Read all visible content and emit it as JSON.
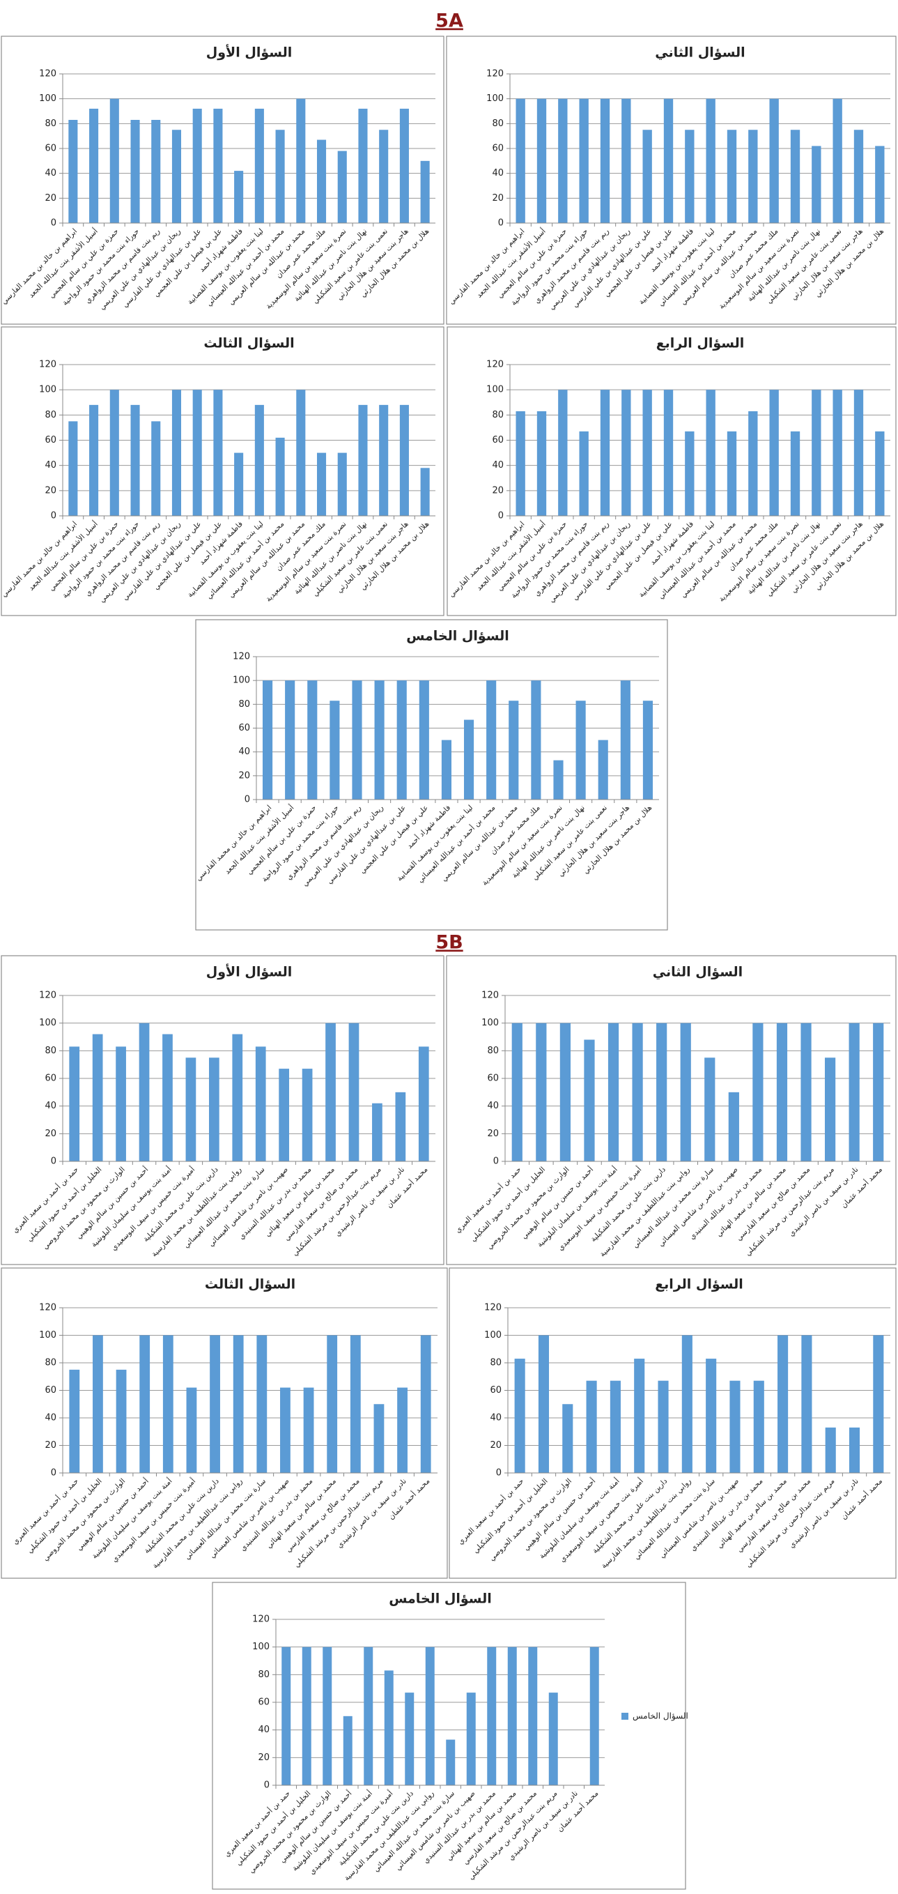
{
  "headings": [
    "5A",
    "5B"
  ],
  "chart_data": [
    {
      "type": "bar",
      "title": "السؤال الأول",
      "color": "#5b9bd5",
      "ylim": [
        0,
        120
      ],
      "yticks": [
        0,
        20,
        40,
        60,
        80,
        100,
        120
      ],
      "grid": true,
      "categories": [
        "ابراهيم بن خالد بن محمد الفارسي",
        "أسيل الأشقر بنت عبدالله الجعد",
        "حمزة بن علي بن سالم العجمي",
        "حوراء بنت محمد بن حمود الرواحية",
        "ريم بنت قاسم بن محمد الزواهري",
        "ريحان بن عبدالهادي بن علي العريمي",
        "علي بن عبدالهادي بن علي الفارسي",
        "علي بن فيصل بن علي العجمي",
        "فاطمة شهزاد أحمد",
        "لينا بنت يعقوب بن يوسف القصابية",
        "محمد بن أحمد بن عبدالله العيسائي",
        "محمد بن عبدالله بن سالم العريمي",
        "ملك محمد عمر صدان",
        "نصرة بنت سعيد بن سالم البوسعيدية",
        "نهال بنت ناصر بن عبدالله الهنائية",
        "نعمى بنت عامر بن سعيد الشكيلي",
        "هاجر بنت سعيد بن هلال الحارثي",
        "هلال بن محمد بن هلال الحارثي"
      ],
      "values": [
        83,
        92,
        100,
        83,
        83,
        75,
        92,
        92,
        42,
        92,
        75,
        100,
        67,
        58,
        92,
        75,
        92,
        50
      ]
    },
    {
      "type": "bar",
      "title": "السؤال الثاني",
      "color": "#5b9bd5",
      "ylim": [
        0,
        120
      ],
      "yticks": [
        0,
        20,
        40,
        60,
        80,
        100,
        120
      ],
      "grid": true,
      "categories": [
        "ابراهيم بن خالد بن محمد الفارسي",
        "أسيل الأشقر بنت عبدالله الجعد",
        "حمزة بن علي بن سالم العجمي",
        "حوراء بنت محمد بن حمود الرواحية",
        "ريم بنت قاسم بن محمد الزواهري",
        "ريحان بن عبدالهادي بن علي العريمي",
        "علي بن عبدالهادي بن علي الفارسي",
        "علي بن فيصل بن علي العجمي",
        "فاطمة شهزاد أحمد",
        "لينا بنت يعقوب بن يوسف القصابية",
        "محمد بن أحمد بن عبدالله العيسائي",
        "محمد بن عبدالله بن سالم العريمي",
        "ملك محمد عمر صدان",
        "نصرة بنت سعيد بن سالم البوسعيدية",
        "نهال بنت ناصر بن عبدالله الهنائية",
        "نعمى بنت عامر بن سعيد الشكيلي",
        "هاجر بنت سعيد بن هلال الحارثي",
        "هلال بن محمد بن هلال الحارثي"
      ],
      "values": [
        100,
        100,
        100,
        100,
        100,
        100,
        75,
        100,
        75,
        100,
        75,
        75,
        100,
        75,
        62,
        100,
        75,
        62
      ]
    },
    {
      "type": "bar",
      "title": "السؤال الثالث",
      "color": "#5b9bd5",
      "ylim": [
        0,
        120
      ],
      "yticks": [
        0,
        20,
        40,
        60,
        80,
        100,
        120
      ],
      "grid": true,
      "categories": [
        "ابراهيم بن خالد بن محمد الفارسي",
        "أسيل الأشقر بنت عبدالله الجعد",
        "حمزة بن علي بن سالم العجمي",
        "حوراء بنت محمد بن حمود الرواحية",
        "ريم بنت قاسم بن محمد الزواهري",
        "ريحان بن عبدالهادي بن علي العريمي",
        "علي بن عبدالهادي بن علي الفارسي",
        "علي بن فيصل بن علي العجمي",
        "فاطمة شهزاد أحمد",
        "لينا بنت يعقوب بن يوسف القصابية",
        "محمد بن أحمد بن عبدالله العيسائي",
        "محمد بن عبدالله بن سالم العريمي",
        "ملك محمد عمر صدان",
        "نصرة بنت سعيد بن سالم البوسعيدية",
        "نهال بنت ناصر بن عبدالله الهنائية",
        "نعمى بنت عامر بن سعيد الشكيلي",
        "هاجر بنت سعيد بن هلال الحارثي",
        "هلال بن محمد بن هلال الحارثي"
      ],
      "values": [
        75,
        88,
        100,
        88,
        75,
        100,
        100,
        100,
        50,
        88,
        62,
        100,
        50,
        50,
        88,
        88,
        88,
        38
      ]
    },
    {
      "type": "bar",
      "title": "السؤال الرابع",
      "color": "#5b9bd5",
      "ylim": [
        0,
        120
      ],
      "yticks": [
        0,
        20,
        40,
        60,
        80,
        100,
        120
      ],
      "grid": true,
      "categories": [
        "ابراهيم بن خالد بن محمد الفارسي",
        "أسيل الأشقر بنت عبدالله الجعد",
        "حمزة بن علي بن سالم العجمي",
        "حوراء بنت محمد بن حمود الرواحية",
        "ريم بنت قاسم بن محمد الزواهري",
        "ريحان بن عبدالهادي بن علي العريمي",
        "علي بن عبدالهادي بن علي الفارسي",
        "علي بن فيصل بن علي العجمي",
        "فاطمة شهزاد أحمد",
        "لينا بنت يعقوب بن يوسف القصابية",
        "محمد بن أحمد بن عبدالله العيسائي",
        "محمد بن عبدالله بن سالم العريمي",
        "ملك محمد عمر صدان",
        "نصرة بنت سعيد بن سالم البوسعيدية",
        "نهال بنت ناصر بن عبدالله الهنائية",
        "نعمى بنت عامر بن سعيد الشكيلي",
        "هاجر بنت سعيد بن هلال الحارثي",
        "هلال بن محمد بن هلال الحارثي"
      ],
      "values": [
        83,
        83,
        100,
        67,
        100,
        100,
        100,
        100,
        67,
        100,
        67,
        83,
        100,
        67,
        100,
        100,
        100,
        67
      ]
    },
    {
      "type": "bar",
      "title": "السؤال الخامس",
      "color": "#5b9bd5",
      "ylim": [
        0,
        120
      ],
      "yticks": [
        0,
        20,
        40,
        60,
        80,
        100,
        120
      ],
      "grid": true,
      "categories": [
        "ابراهيم بن خالد بن محمد الفارسي",
        "أسيل الأشقر بنت عبدالله الجعد",
        "حمزة بن علي بن سالم العجمي",
        "حوراء بنت محمد بن حمود الرواحية",
        "ريم بنت قاسم بن محمد الزواهري",
        "ريحان بن عبدالهادي بن علي العريمي",
        "علي بن عبدالهادي بن علي الفارسي",
        "علي بن فيصل بن علي العجمي",
        "فاطمة شهزاد أحمد",
        "لينا بنت يعقوب بن يوسف القصابية",
        "محمد بن أحمد بن عبدالله العيسائي",
        "محمد بن عبدالله بن سالم العريمي",
        "ملك محمد عمر صدان",
        "نصرة بنت سعيد بن سالم البوسعيدية",
        "نهال بنت ناصر بن عبدالله الهنائية",
        "نعمى بنت عامر بن سعيد الشكيلي",
        "هاجر بنت سعيد بن هلال الحارثي",
        "هلال بن محمد بن هلال الحارثي"
      ],
      "values": [
        100,
        100,
        100,
        83,
        100,
        100,
        100,
        100,
        50,
        67,
        100,
        83,
        100,
        33,
        83,
        50,
        100,
        83
      ]
    },
    {
      "type": "bar",
      "title": "السؤال الأول",
      "color": "#5b9bd5",
      "ylim": [
        0,
        120
      ],
      "yticks": [
        0,
        20,
        40,
        60,
        80,
        100,
        120
      ],
      "grid": true,
      "categories": [
        "حمد بن أحمد بن سعيد العبري",
        "الخليل بن أحمد بن حمود الشكيلي",
        "الوارث بن محمود بن محمد الخروصي",
        "أحمد بن حسين بن سالم الوهيبي",
        "أمنة بنت يوسف بن سليمان البلوشية",
        "أميرة بنت خميس بن سيف البوسعيدي",
        "دارين بنت علي بن محمد الشكيلية",
        "روابي بنت عبداللطيف بن محمد الفارسية",
        "سارة بنت محمد بن عبدالله العيسائي",
        "صهيب بن ناصر بن شامس العيسائي",
        "محمد بن بدر بن عبدالله السنيدي",
        "محمد بن سالم بن سعيد الهنائي",
        "محمد بن صالح بن سعيد الفارسي",
        "مريم بنت عبدالرحمن بن مرشد الشكيلي",
        "نادر بن سيف بن ناصر الرشيدي",
        "محمد أحمد عثمان"
      ],
      "values": [
        83,
        92,
        83,
        100,
        92,
        75,
        75,
        92,
        83,
        67,
        67,
        100,
        100,
        42,
        50,
        83
      ]
    },
    {
      "type": "bar",
      "title": "السؤال الثاني",
      "color": "#5b9bd5",
      "ylim": [
        0,
        120
      ],
      "yticks": [
        0,
        20,
        40,
        60,
        80,
        100,
        120
      ],
      "grid": true,
      "categories": [
        "حمد بن أحمد بن سعيد العبري",
        "الخليل بن أحمد بن حمود الشكيلي",
        "الوارث بن محمود بن محمد الخروصي",
        "أحمد بن حسين بن سالم الوهيبي",
        "أمنة بنت يوسف بن سليمان البلوشية",
        "أميرة بنت خميس بن سيف البوسعيدي",
        "دارين بنت علي بن محمد الشكيلية",
        "روابي بنت عبداللطيف بن محمد الفارسية",
        "سارة بنت محمد بن عبدالله العيسائي",
        "صهيب بن ناصر بن شامس العيسائي",
        "محمد بن بدر بن عبدالله السنيدي",
        "محمد بن سالم بن سعيد الهنائي",
        "محمد بن صالح بن سعيد الفارسي",
        "مريم بنت عبدالرحمن بن مرشد الشكيلي",
        "نادر بن سيف بن ناصر الرشيدي",
        "محمد أحمد عثمان"
      ],
      "values": [
        100,
        100,
        100,
        88,
        100,
        100,
        100,
        100,
        75,
        50,
        100,
        100,
        100,
        75,
        100,
        100
      ]
    },
    {
      "type": "bar",
      "title": "السؤال الثالث",
      "color": "#5b9bd5",
      "ylim": [
        0,
        120
      ],
      "yticks": [
        0,
        20,
        40,
        60,
        80,
        100,
        120
      ],
      "grid": true,
      "categories": [
        "حمد بن أحمد بن سعيد العبري",
        "الخليل بن أحمد بن حمود الشكيلي",
        "الوارث بن محمود بن محمد الخروصي",
        "أحمد بن حسين بن سالم الوهيبي",
        "أمنة بنت يوسف بن سليمان البلوشية",
        "أميرة بنت خميس بن سيف البوسعيدي",
        "دارين بنت علي بن محمد الشكيلية",
        "روابي بنت عبداللطيف بن محمد الفارسية",
        "سارة بنت محمد بن عبدالله العيسائي",
        "صهيب بن ناصر بن شامس العيسائي",
        "محمد بن بدر بن عبدالله السنيدي",
        "محمد بن سالم بن سعيد الهنائي",
        "محمد بن صالح بن سعيد الفارسي",
        "مريم بنت عبدالرحمن بن مرشد الشكيلي",
        "نادر بن سيف بن ناصر الرشيدي",
        "محمد أحمد عثمان"
      ],
      "values": [
        75,
        100,
        75,
        100,
        100,
        62,
        100,
        100,
        100,
        62,
        62,
        100,
        100,
        50,
        62,
        100
      ]
    },
    {
      "type": "bar",
      "title": "السؤال الرابع",
      "color": "#5b9bd5",
      "ylim": [
        0,
        120
      ],
      "yticks": [
        0,
        20,
        40,
        60,
        80,
        100,
        120
      ],
      "grid": true,
      "categories": [
        "حمد بن أحمد بن سعيد العبري",
        "الخليل بن أحمد بن حمود الشكيلي",
        "الوارث بن محمود بن محمد الخروصي",
        "أحمد بن حسين بن سالم الوهيبي",
        "أمنة بنت يوسف بن سليمان البلوشية",
        "أميرة بنت خميس بن سيف البوسعيدي",
        "دارين بنت علي بن محمد الشكيلية",
        "روابي بنت عبداللطيف بن محمد الفارسية",
        "سارة بنت محمد بن عبدالله العيسائي",
        "صهيب بن ناصر بن شامس العيسائي",
        "محمد بن بدر بن عبدالله السنيدي",
        "محمد بن سالم بن سعيد الهنائي",
        "محمد بن صالح بن سعيد الفارسي",
        "مريم بنت عبدالرحمن بن مرشد الشكيلي",
        "نادر بن سيف بن ناصر الرشيدي",
        "محمد أحمد عثمان"
      ],
      "values": [
        83,
        100,
        50,
        67,
        67,
        83,
        67,
        100,
        83,
        67,
        67,
        100,
        100,
        33,
        33,
        100
      ]
    },
    {
      "type": "bar",
      "title": "السؤال الخامس",
      "ylim": [
        0,
        120
      ],
      "yticks": [
        0,
        20,
        40,
        60,
        80,
        100,
        120
      ],
      "grid": true,
      "legend": "right",
      "categories": [
        "حمد بن أحمد بن سعيد العبري",
        "الخليل بن أحمد بن حمود الشكيلي",
        "الوارث بن محمود بن محمد الخروصي",
        "أحمد بن حسين بن سالم الوهيبي",
        "أمنة بنت يوسف بن سليمان البلوشية",
        "أميرة بنت خميس بن سيف البوسعيدي",
        "دارين بنت علي بن محمد الشكيلية",
        "روابي بنت عبداللطيف بن محمد الفارسية",
        "سارة بنت محمد بن عبدالله العيسائي",
        "صهيب بن ناصر بن شامس العيسائي",
        "محمد بن بدر بن عبدالله السنيدي",
        "محمد بن سالم بن سعيد الهنائي",
        "محمد بن صالح بن سعيد الفارسي",
        "مريم بنت عبدالرحمن بن مرشد الشكيلي",
        "نادر بن سيف بن ناصر الرشيدي",
        "محمد أحمد عثمان"
      ],
      "series": [
        {
          "name": "السؤال الخامس",
          "color": "#5b9bd5",
          "values": [
            100,
            100,
            100,
            50,
            100,
            83,
            67,
            100,
            33,
            67,
            100,
            100,
            100,
            67,
            0,
            100
          ]
        }
      ]
    }
  ]
}
